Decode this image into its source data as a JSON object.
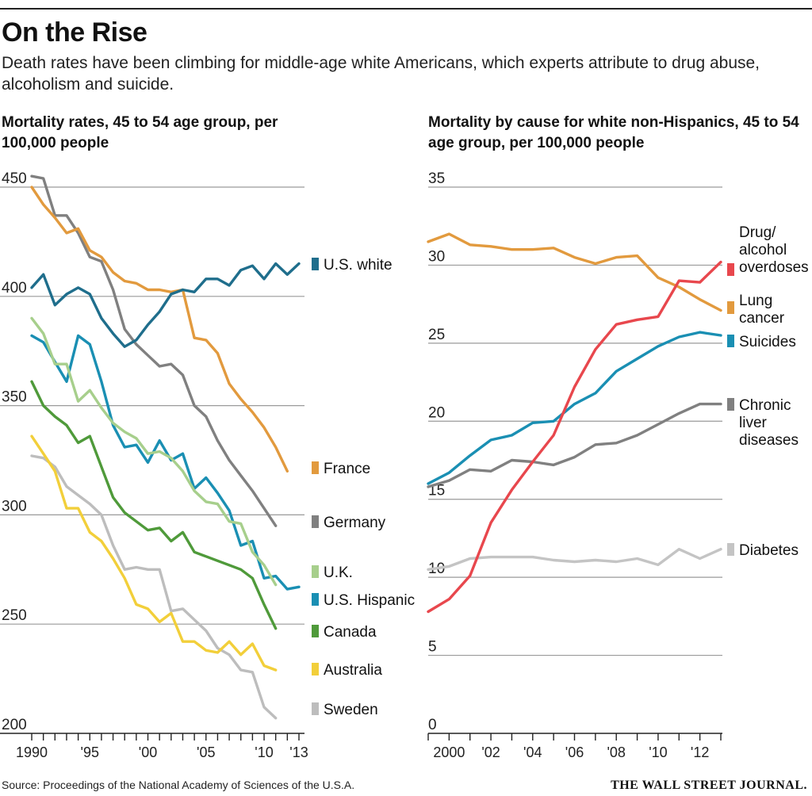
{
  "header": {
    "title": "On the Rise",
    "subtitle": "Death rates have been climbing for middle-age white Americans, which experts attribute to drug abuse, alcoholism and suicide."
  },
  "chart_data": [
    {
      "type": "line",
      "title": "Mortality rates, 45 to 54 age group, per 100,000 people",
      "xlim": [
        1990,
        2013
      ],
      "ylim": [
        200,
        450
      ],
      "x_ticks": [
        1990,
        1991,
        1992,
        1993,
        1994,
        1995,
        1996,
        1997,
        1998,
        1999,
        2000,
        2001,
        2002,
        2003,
        2004,
        2005,
        2006,
        2007,
        2008,
        2009,
        2010,
        2011,
        2012,
        2013
      ],
      "x_tick_labels": [
        {
          "x": 1990,
          "label": "1990"
        },
        {
          "x": 1995,
          "label": "'95"
        },
        {
          "x": 2000,
          "label": "'00"
        },
        {
          "x": 2005,
          "label": "'05"
        },
        {
          "x": 2010,
          "label": "'10"
        },
        {
          "x": 2013,
          "label": "'13"
        }
      ],
      "y_ticks": [
        200,
        250,
        300,
        350,
        400,
        450
      ],
      "grid": true,
      "legend": "right",
      "series": [
        {
          "name": "U.S. white",
          "color": "#1f6e8c",
          "x": [
            1990,
            1991,
            1992,
            1993,
            1994,
            1995,
            1996,
            1997,
            1998,
            1999,
            2000,
            2001,
            2002,
            2003,
            2004,
            2005,
            2006,
            2007,
            2008,
            2009,
            2010,
            2011,
            2012,
            2013
          ],
          "values": [
            404,
            410,
            396,
            401,
            404,
            401,
            390,
            383,
            377,
            380,
            387,
            393,
            401,
            403,
            402,
            408,
            408,
            405,
            412,
            414,
            408,
            415,
            410,
            415
          ]
        },
        {
          "name": "France",
          "color": "#e29a3e",
          "x": [
            1990,
            1991,
            1992,
            1993,
            1994,
            1995,
            1996,
            1997,
            1998,
            1999,
            2000,
            2001,
            2002,
            2003,
            2004,
            2005,
            2006,
            2007,
            2008,
            2009,
            2010,
            2011,
            2012
          ],
          "values": [
            450,
            442,
            436,
            429,
            431,
            421,
            418,
            411,
            407,
            406,
            403,
            403,
            402,
            403,
            381,
            380,
            374,
            360,
            353,
            347,
            340,
            331,
            320
          ]
        },
        {
          "name": "Germany",
          "color": "#808080",
          "x": [
            1990,
            1991,
            1992,
            1993,
            1994,
            1995,
            1996,
            1997,
            1998,
            1999,
            2000,
            2001,
            2002,
            2003,
            2004,
            2005,
            2006,
            2007,
            2008,
            2009,
            2010,
            2011
          ],
          "values": [
            455,
            454,
            437,
            437,
            429,
            418,
            416,
            403,
            385,
            378,
            373,
            368,
            369,
            364,
            350,
            345,
            334,
            325,
            318,
            311,
            303,
            295
          ]
        },
        {
          "name": "U.K.",
          "color": "#a7cf8c",
          "x": [
            1990,
            1991,
            1992,
            1993,
            1994,
            1995,
            1996,
            1997,
            1998,
            1999,
            2000,
            2001,
            2002,
            2003,
            2004,
            2005,
            2006,
            2007,
            2008,
            2009,
            2010,
            2011
          ],
          "values": [
            390,
            383,
            369,
            369,
            352,
            357,
            349,
            342,
            338,
            335,
            328,
            329,
            326,
            320,
            311,
            306,
            305,
            297,
            296,
            283,
            277,
            268
          ]
        },
        {
          "name": "U.S. Hispanic",
          "color": "#1a8fb3",
          "x": [
            1990,
            1991,
            1992,
            1993,
            1994,
            1995,
            1996,
            1997,
            1998,
            1999,
            2000,
            2001,
            2002,
            2003,
            2004,
            2005,
            2006,
            2007,
            2008,
            2009,
            2010,
            2011,
            2012,
            2013
          ],
          "values": [
            382,
            379,
            370,
            361,
            382,
            378,
            361,
            341,
            331,
            332,
            324,
            334,
            325,
            328,
            312,
            317,
            310,
            302,
            286,
            288,
            271,
            272,
            266,
            267
          ]
        },
        {
          "name": "Canada",
          "color": "#4f9a3a",
          "x": [
            1990,
            1991,
            1992,
            1993,
            1994,
            1995,
            1996,
            1997,
            1998,
            1999,
            2000,
            2001,
            2002,
            2003,
            2004,
            2005,
            2006,
            2007,
            2008,
            2009,
            2010,
            2011
          ],
          "values": [
            361,
            350,
            345,
            341,
            333,
            336,
            322,
            308,
            301,
            297,
            293,
            294,
            288,
            292,
            283,
            281,
            279,
            277,
            275,
            271,
            259,
            248
          ]
        },
        {
          "name": "Australia",
          "color": "#f2cf3a",
          "x": [
            1990,
            1991,
            1992,
            1993,
            1994,
            1995,
            1996,
            1997,
            1998,
            1999,
            2000,
            2001,
            2002,
            2003,
            2004,
            2005,
            2006,
            2007,
            2008,
            2009,
            2010,
            2011
          ],
          "values": [
            336,
            328,
            320,
            303,
            303,
            292,
            288,
            280,
            271,
            259,
            257,
            251,
            255,
            242,
            242,
            238,
            237,
            242,
            236,
            241,
            231,
            229
          ]
        },
        {
          "name": "Sweden",
          "color": "#bdbdbd",
          "x": [
            1990,
            1991,
            1992,
            1993,
            1994,
            1995,
            1996,
            1997,
            1998,
            1999,
            2000,
            2001,
            2002,
            2003,
            2004,
            2005,
            2006,
            2007,
            2008,
            2009,
            2010,
            2011
          ],
          "values": [
            327,
            326,
            322,
            313,
            309,
            305,
            300,
            286,
            275,
            276,
            275,
            275,
            256,
            257,
            252,
            247,
            239,
            236,
            229,
            228,
            212,
            207
          ]
        }
      ]
    },
    {
      "type": "line",
      "title": "Mortality by cause for white non-Hispanics, 45 to 54 age group, per 100,000 people",
      "xlim": [
        1999,
        2013
      ],
      "ylim": [
        0,
        35
      ],
      "x_ticks": [
        1999,
        2000,
        2001,
        2002,
        2003,
        2004,
        2005,
        2006,
        2007,
        2008,
        2009,
        2010,
        2011,
        2012,
        2013
      ],
      "x_tick_labels": [
        {
          "x": 2000,
          "label": "2000"
        },
        {
          "x": 2002,
          "label": "'02"
        },
        {
          "x": 2004,
          "label": "'04"
        },
        {
          "x": 2006,
          "label": "'06"
        },
        {
          "x": 2008,
          "label": "'08"
        },
        {
          "x": 2010,
          "label": "'10"
        },
        {
          "x": 2012,
          "label": "'12"
        }
      ],
      "y_ticks": [
        0,
        5,
        10,
        15,
        20,
        25,
        30,
        35
      ],
      "grid": true,
      "legend": "right",
      "series": [
        {
          "name": "Drug/ alcohol overdoses",
          "label_lines": [
            "Drug/",
            "alcohol",
            "overdoses"
          ],
          "color": "#e8474d",
          "x": [
            1999,
            2000,
            2001,
            2002,
            2003,
            2004,
            2005,
            2006,
            2007,
            2008,
            2009,
            2010,
            2011,
            2012,
            2013
          ],
          "values": [
            7.8,
            8.6,
            10.1,
            13.5,
            15.6,
            17.4,
            19.1,
            22.2,
            24.6,
            26.2,
            26.5,
            26.7,
            29.0,
            28.9,
            30.2
          ]
        },
        {
          "name": "Lung cancer",
          "label_lines": [
            "Lung",
            "cancer"
          ],
          "color": "#e29a3e",
          "x": [
            1999,
            2000,
            2001,
            2002,
            2003,
            2004,
            2005,
            2006,
            2007,
            2008,
            2009,
            2010,
            2011,
            2012,
            2013
          ],
          "values": [
            31.5,
            32.0,
            31.3,
            31.2,
            31.0,
            31.0,
            31.1,
            30.5,
            30.1,
            30.5,
            30.6,
            29.2,
            28.6,
            27.8,
            27.1
          ]
        },
        {
          "name": "Suicides",
          "label_lines": [
            "Suicides"
          ],
          "color": "#1a8fb3",
          "x": [
            1999,
            2000,
            2001,
            2002,
            2003,
            2004,
            2005,
            2006,
            2007,
            2008,
            2009,
            2010,
            2011,
            2012,
            2013
          ],
          "values": [
            16.0,
            16.7,
            17.8,
            18.8,
            19.1,
            19.9,
            20.0,
            21.1,
            21.8,
            23.2,
            24.0,
            24.8,
            25.4,
            25.7,
            25.5
          ]
        },
        {
          "name": "Chronic liver diseases",
          "label_lines": [
            "Chronic",
            "liver",
            "diseases"
          ],
          "color": "#808080",
          "x": [
            1999,
            2000,
            2001,
            2002,
            2003,
            2004,
            2005,
            2006,
            2007,
            2008,
            2009,
            2010,
            2011,
            2012,
            2013
          ],
          "values": [
            15.8,
            16.2,
            16.9,
            16.8,
            17.5,
            17.4,
            17.2,
            17.7,
            18.5,
            18.6,
            19.1,
            19.8,
            20.5,
            21.1,
            21.1
          ]
        },
        {
          "name": "Diabetes",
          "label_lines": [
            "Diabetes"
          ],
          "color": "#c4c4c4",
          "x": [
            1999,
            2000,
            2001,
            2002,
            2003,
            2004,
            2005,
            2006,
            2007,
            2008,
            2009,
            2010,
            2011,
            2012,
            2013
          ],
          "values": [
            10.5,
            10.7,
            11.2,
            11.3,
            11.3,
            11.3,
            11.1,
            11.0,
            11.1,
            11.0,
            11.2,
            10.8,
            11.8,
            11.2,
            11.8
          ]
        }
      ]
    }
  ],
  "footer": {
    "source": "Source: Proceedings of the National Academy of Sciences of the U.S.A.",
    "publisher": "THE WALL STREET JOURNAL."
  }
}
